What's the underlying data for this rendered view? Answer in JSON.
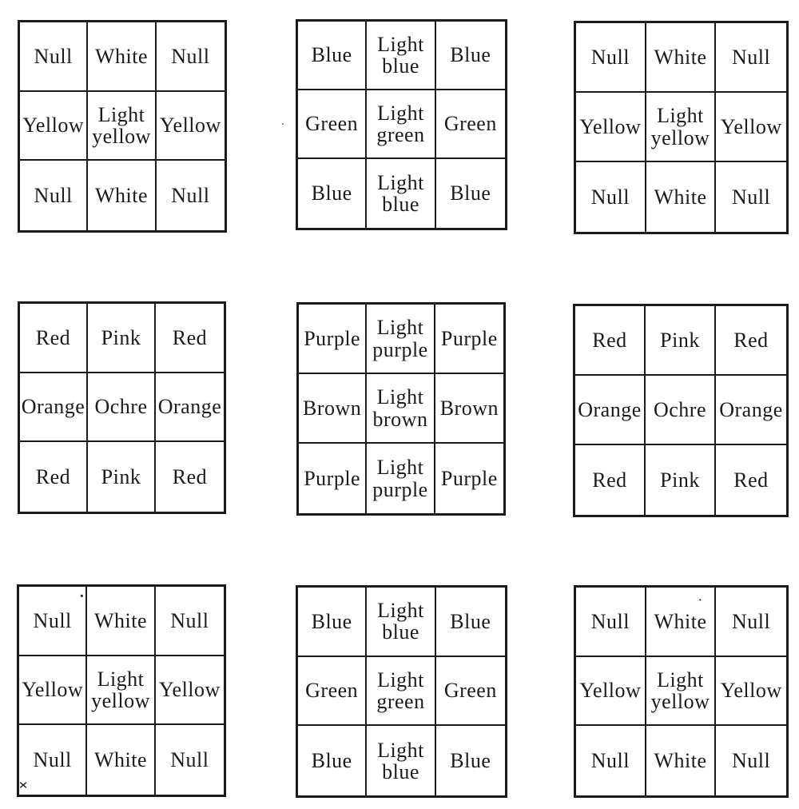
{
  "page": {
    "paper_color": "#ffffff",
    "ink_color": "#1b1b1b"
  },
  "grids": [
    {
      "id": "grid-top-left",
      "cells": [
        [
          "Null",
          "White",
          "Null"
        ],
        [
          "Yellow",
          "Light yellow",
          "Yellow"
        ],
        [
          "Null",
          "White",
          "Null"
        ]
      ]
    },
    {
      "id": "grid-top-center",
      "cells": [
        [
          "Blue",
          "Light blue",
          "Blue"
        ],
        [
          "Green",
          "Light green",
          "Green"
        ],
        [
          "Blue",
          "Light blue",
          "Blue"
        ]
      ]
    },
    {
      "id": "grid-top-right",
      "cells": [
        [
          "Null",
          "White",
          "Null"
        ],
        [
          "Yellow",
          "Light yellow",
          "Yellow"
        ],
        [
          "Null",
          "White",
          "Null"
        ]
      ]
    },
    {
      "id": "grid-middle-left",
      "cells": [
        [
          "Red",
          "Pink",
          "Red"
        ],
        [
          "Orange",
          "Ochre",
          "Orange"
        ],
        [
          "Red",
          "Pink",
          "Red"
        ]
      ]
    },
    {
      "id": "grid-middle-center",
      "cells": [
        [
          "Purple",
          "Light purple",
          "Purple"
        ],
        [
          "Brown",
          "Light brown",
          "Brown"
        ],
        [
          "Purple",
          "Light purple",
          "Purple"
        ]
      ]
    },
    {
      "id": "grid-middle-right",
      "cells": [
        [
          "Red",
          "Pink",
          "Red"
        ],
        [
          "Orange",
          "Ochre",
          "Orange"
        ],
        [
          "Red",
          "Pink",
          "Red"
        ]
      ]
    },
    {
      "id": "grid-bottom-left",
      "cells": [
        [
          "Null",
          "White",
          "Null"
        ],
        [
          "Yellow",
          "Light yellow",
          "Yellow"
        ],
        [
          "Null",
          "White",
          "Null"
        ]
      ]
    },
    {
      "id": "grid-bottom-center",
      "cells": [
        [
          "Blue",
          "Light blue",
          "Blue"
        ],
        [
          "Green",
          "Light green",
          "Green"
        ],
        [
          "Blue",
          "Light blue",
          "Blue"
        ]
      ]
    },
    {
      "id": "grid-bottom-right",
      "cells": [
        [
          "Null",
          "White",
          "Null"
        ],
        [
          "Yellow",
          "Light yellow",
          "Yellow"
        ],
        [
          "Null",
          "White",
          "Null"
        ]
      ]
    }
  ],
  "artifacts": {
    "stray_mark": "×",
    "speck": "·"
  }
}
